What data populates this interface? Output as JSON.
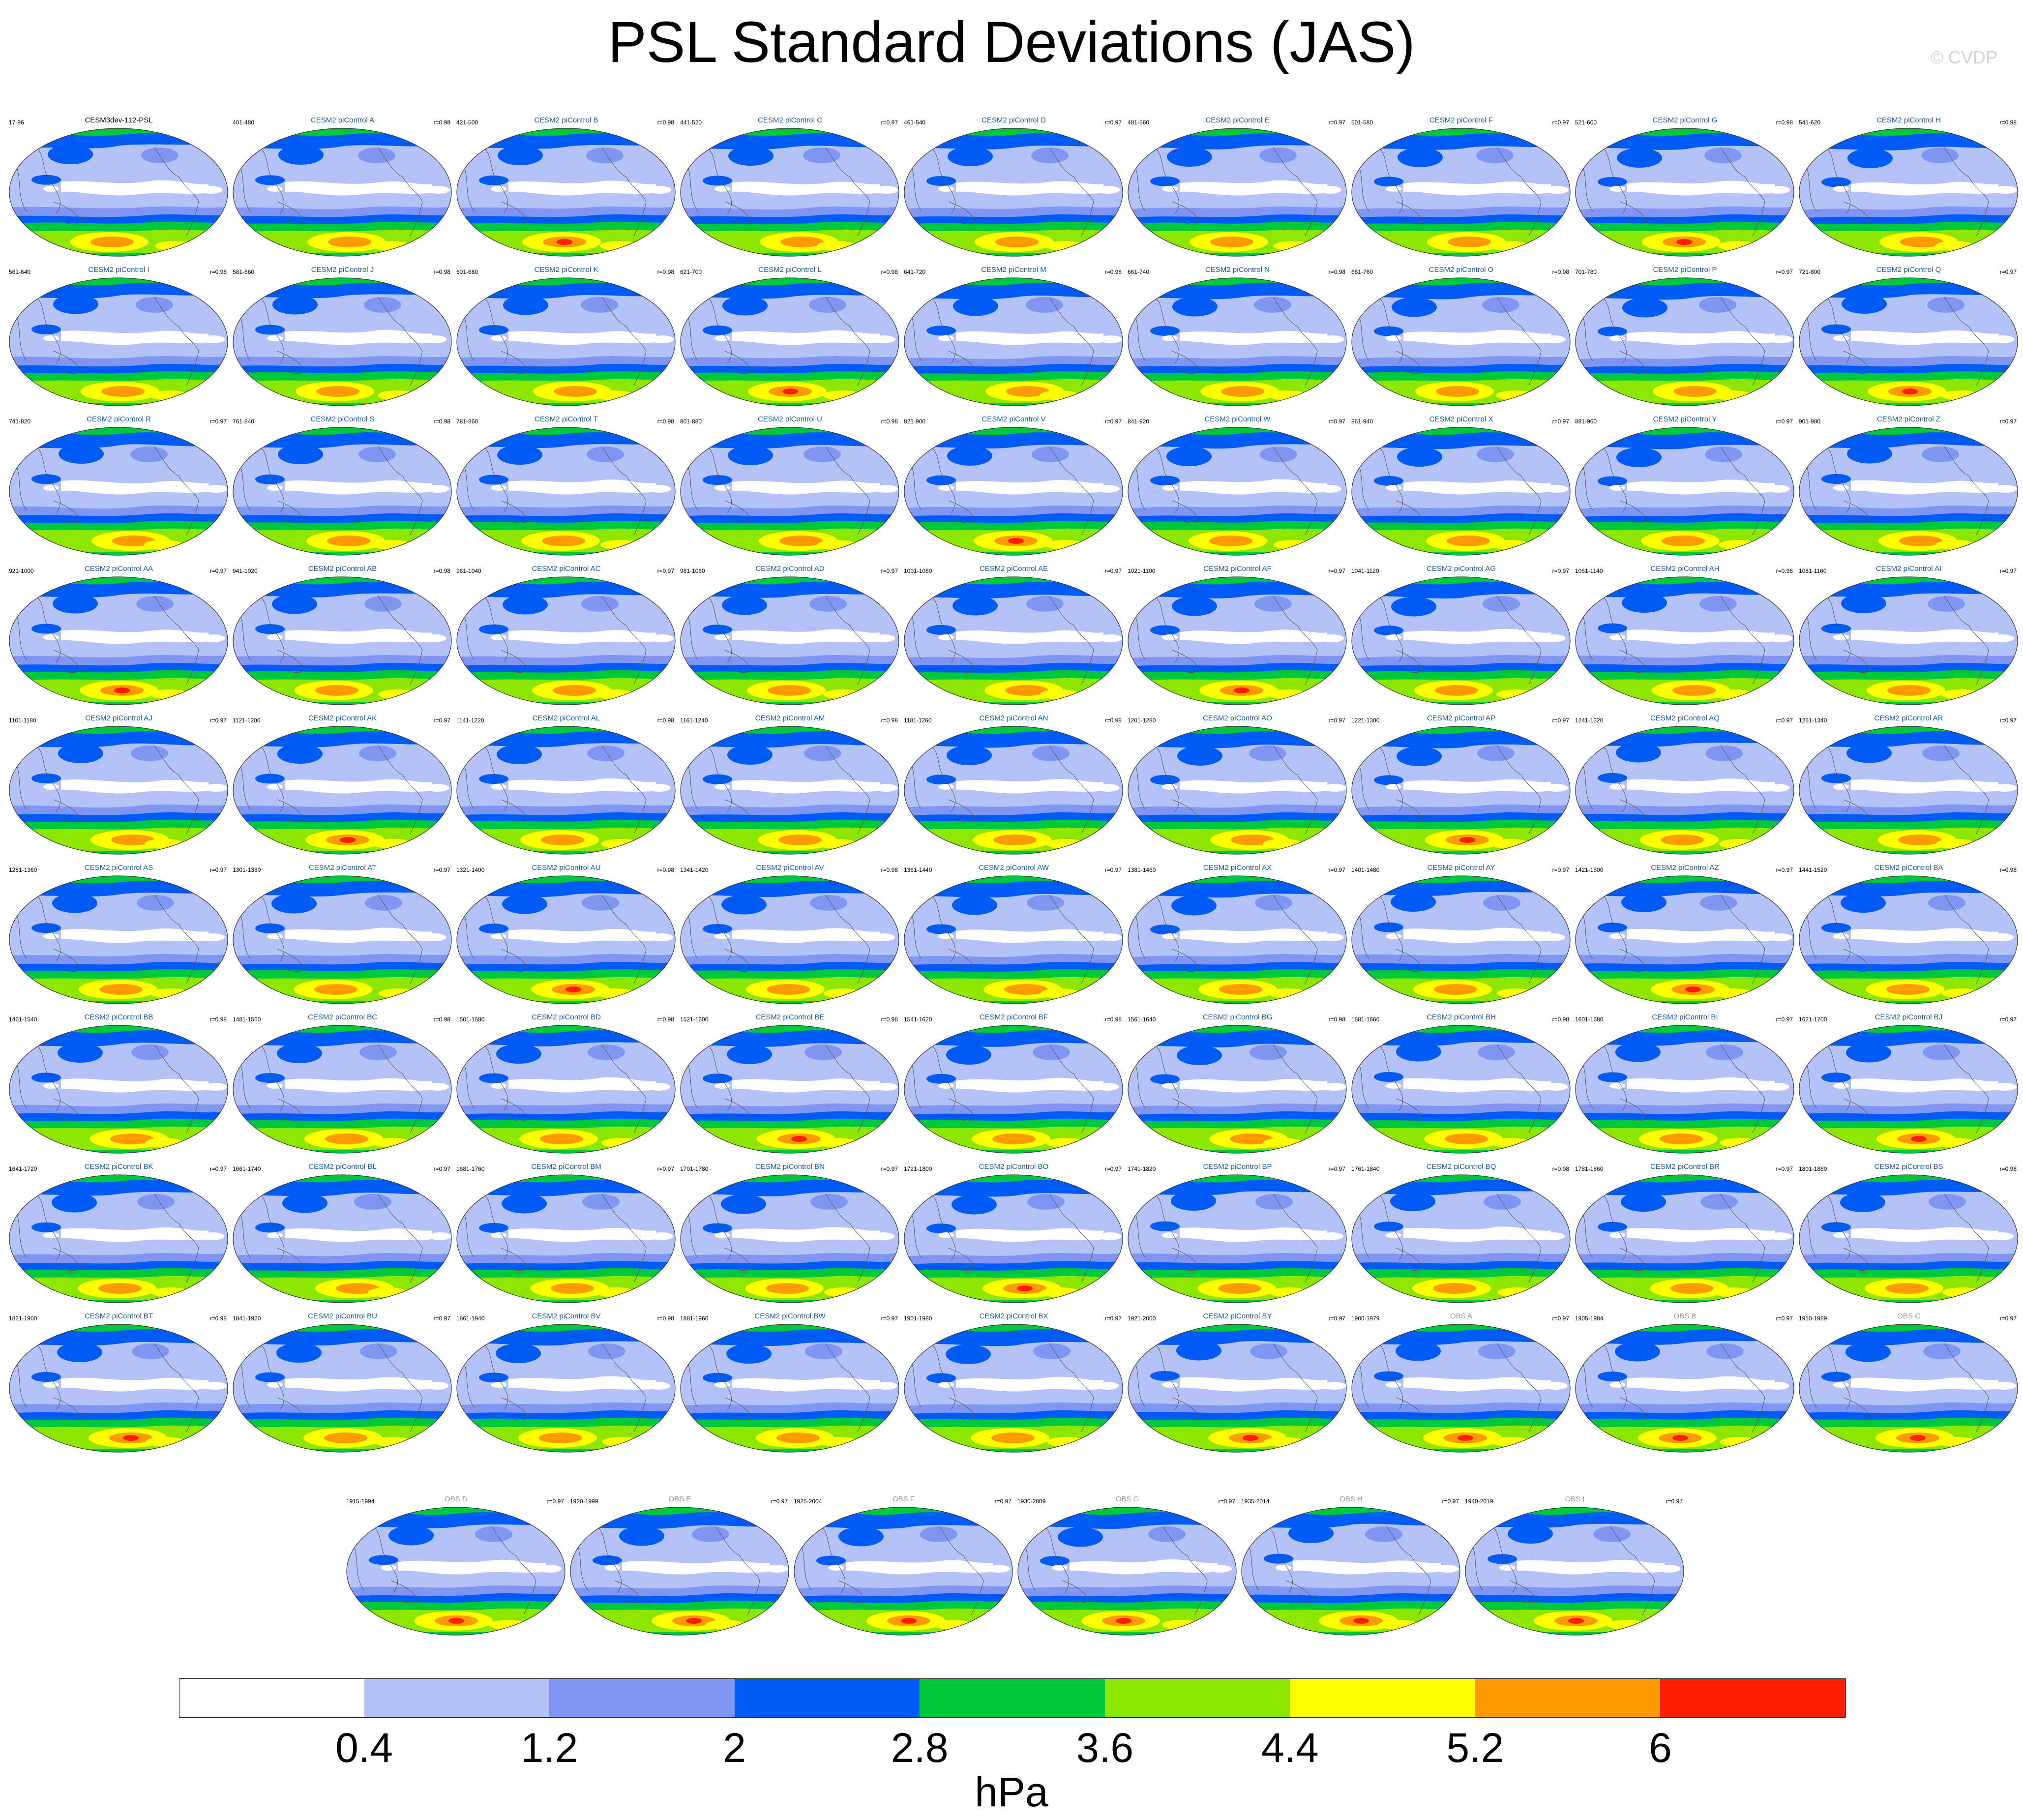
{
  "title": "PSL Standard Deviations (JAS)",
  "watermark": "© CVDP",
  "panels": [
    {
      "name": "CESM3dev-112-PSL",
      "years": "17-96",
      "r": "",
      "type": "ref"
    },
    {
      "name": "CESM2 piControl A",
      "years": "401-480",
      "r": "r=0.98",
      "type": "model"
    },
    {
      "name": "CESM2 piControl B",
      "years": "421-500",
      "r": "r=0.98",
      "type": "model"
    },
    {
      "name": "CESM2 piControl C",
      "years": "441-520",
      "r": "r=0.97",
      "type": "model"
    },
    {
      "name": "CESM2 piControl D",
      "years": "461-540",
      "r": "r=0.97",
      "type": "model"
    },
    {
      "name": "CESM2 piControl E",
      "years": "481-560",
      "r": "r=0.97",
      "type": "model"
    },
    {
      "name": "CESM2 piControl F",
      "years": "501-580",
      "r": "r=0.97",
      "type": "model"
    },
    {
      "name": "CESM2 piControl G",
      "years": "521-600",
      "r": "r=0.98",
      "type": "model"
    },
    {
      "name": "CESM2 piControl H",
      "years": "541-620",
      "r": "r=0.98",
      "type": "model"
    },
    {
      "name": "CESM2 piControl I",
      "years": "561-640",
      "r": "r=0.98",
      "type": "model"
    },
    {
      "name": "CESM2 piControl J",
      "years": "581-660",
      "r": "r=0.98",
      "type": "model"
    },
    {
      "name": "CESM2 piControl K",
      "years": "601-680",
      "r": "r=0.98",
      "type": "model"
    },
    {
      "name": "CESM2 piControl L",
      "years": "621-700",
      "r": "r=0.98",
      "type": "model"
    },
    {
      "name": "CESM2 piControl M",
      "years": "641-720",
      "r": "r=0.98",
      "type": "model"
    },
    {
      "name": "CESM2 piControl N",
      "years": "661-740",
      "r": "r=0.98",
      "type": "model"
    },
    {
      "name": "CESM2 piControl O",
      "years": "681-760",
      "r": "r=0.98",
      "type": "model"
    },
    {
      "name": "CESM2 piControl P",
      "years": "701-780",
      "r": "r=0.97",
      "type": "model"
    },
    {
      "name": "CESM2 piControl Q",
      "years": "721-800",
      "r": "r=0.97",
      "type": "model"
    },
    {
      "name": "CESM2 piControl R",
      "years": "741-820",
      "r": "r=0.97",
      "type": "model"
    },
    {
      "name": "CESM2 piControl S",
      "years": "761-840",
      "r": "r=0.98",
      "type": "model"
    },
    {
      "name": "CESM2 piControl T",
      "years": "781-860",
      "r": "r=0.98",
      "type": "model"
    },
    {
      "name": "CESM2 piControl U",
      "years": "801-880",
      "r": "r=0.98",
      "type": "model"
    },
    {
      "name": "CESM2 piControl V",
      "years": "821-900",
      "r": "r=0.97",
      "type": "model"
    },
    {
      "name": "CESM2 piControl W",
      "years": "841-920",
      "r": "r=0.97",
      "type": "model"
    },
    {
      "name": "CESM2 piControl X",
      "years": "861-940",
      "r": "r=0.97",
      "type": "model"
    },
    {
      "name": "CESM2 piControl Y",
      "years": "881-960",
      "r": "r=0.97",
      "type": "model"
    },
    {
      "name": "CESM2 piControl Z",
      "years": "901-980",
      "r": "r=0.97",
      "type": "model"
    },
    {
      "name": "CESM2 piControl AA",
      "years": "921-1000",
      "r": "r=0.97",
      "type": "model"
    },
    {
      "name": "CESM2 piControl AB",
      "years": "941-1020",
      "r": "r=0.98",
      "type": "model"
    },
    {
      "name": "CESM2 piControl AC",
      "years": "961-1040",
      "r": "r=0.97",
      "type": "model"
    },
    {
      "name": "CESM2 piControl AD",
      "years": "981-1060",
      "r": "r=0.97",
      "type": "model"
    },
    {
      "name": "CESM2 piControl AE",
      "years": "1001-1080",
      "r": "r=0.97",
      "type": "model"
    },
    {
      "name": "CESM2 piControl AF",
      "years": "1021-1100",
      "r": "r=0.97",
      "type": "model"
    },
    {
      "name": "CESM2 piControl AG",
      "years": "1041-1120",
      "r": "r=0.97",
      "type": "model"
    },
    {
      "name": "CESM2 piControl AH",
      "years": "1061-1140",
      "r": "r=0.96",
      "type": "model"
    },
    {
      "name": "CESM2 piControl AI",
      "years": "1081-1160",
      "r": "r=0.97",
      "type": "model"
    },
    {
      "name": "CESM2 piControl AJ",
      "years": "1101-1180",
      "r": "r=0.97",
      "type": "model"
    },
    {
      "name": "CESM2 piControl AK",
      "years": "1121-1200",
      "r": "r=0.97",
      "type": "model"
    },
    {
      "name": "CESM2 piControl AL",
      "years": "1141-1220",
      "r": "r=0.98",
      "type": "model"
    },
    {
      "name": "CESM2 piControl AM",
      "years": "1161-1240",
      "r": "r=0.98",
      "type": "model"
    },
    {
      "name": "CESM2 piControl AN",
      "years": "1181-1260",
      "r": "r=0.98",
      "type": "model"
    },
    {
      "name": "CESM2 piControl AO",
      "years": "1201-1280",
      "r": "r=0.97",
      "type": "model"
    },
    {
      "name": "CESM2 piControl AP",
      "years": "1221-1300",
      "r": "r=0.97",
      "type": "model"
    },
    {
      "name": "CESM2 piControl AQ",
      "years": "1241-1320",
      "r": "r=0.97",
      "type": "model"
    },
    {
      "name": "CESM2 piControl AR",
      "years": "1261-1340",
      "r": "r=0.97",
      "type": "model"
    },
    {
      "name": "CESM2 piControl AS",
      "years": "1281-1360",
      "r": "r=0.97",
      "type": "model"
    },
    {
      "name": "CESM2 piControl AT",
      "years": "1301-1380",
      "r": "r=0.97",
      "type": "model"
    },
    {
      "name": "CESM2 piControl AU",
      "years": "1321-1400",
      "r": "r=0.98",
      "type": "model"
    },
    {
      "name": "CESM2 piControl AV",
      "years": "1341-1420",
      "r": "r=0.98",
      "type": "model"
    },
    {
      "name": "CESM2 piControl AW",
      "years": "1361-1440",
      "r": "r=0.97",
      "type": "model"
    },
    {
      "name": "CESM2 piControl AX",
      "years": "1381-1460",
      "r": "r=0.97",
      "type": "model"
    },
    {
      "name": "CESM2 piControl AY",
      "years": "1401-1480",
      "r": "r=0.97",
      "type": "model"
    },
    {
      "name": "CESM2 piControl AZ",
      "years": "1421-1500",
      "r": "r=0.97",
      "type": "model"
    },
    {
      "name": "CESM2 piControl BA",
      "years": "1441-1520",
      "r": "r=0.98",
      "type": "model"
    },
    {
      "name": "CESM2 piControl BB",
      "years": "1461-1540",
      "r": "r=0.98",
      "type": "model"
    },
    {
      "name": "CESM2 piControl BC",
      "years": "1481-1560",
      "r": "r=0.98",
      "type": "model"
    },
    {
      "name": "CESM2 piControl BD",
      "years": "1501-1580",
      "r": "r=0.98",
      "type": "model"
    },
    {
      "name": "CESM2 piControl BE",
      "years": "1521-1600",
      "r": "r=0.98",
      "type": "model"
    },
    {
      "name": "CESM2 piControl BF",
      "years": "1541-1620",
      "r": "r=0.98",
      "type": "model"
    },
    {
      "name": "CESM2 piControl BG",
      "years": "1561-1640",
      "r": "r=0.98",
      "type": "model"
    },
    {
      "name": "CESM2 piControl BH",
      "years": "1581-1660",
      "r": "r=0.98",
      "type": "model"
    },
    {
      "name": "CESM2 piControl BI",
      "years": "1601-1680",
      "r": "r=0.97",
      "type": "model"
    },
    {
      "name": "CESM2 piControl BJ",
      "years": "1621-1700",
      "r": "r=0.97",
      "type": "model"
    },
    {
      "name": "CESM2 piControl BK",
      "years": "1641-1720",
      "r": "r=0.97",
      "type": "model"
    },
    {
      "name": "CESM2 piControl BL",
      "years": "1661-1740",
      "r": "r=0.97",
      "type": "model"
    },
    {
      "name": "CESM2 piControl BM",
      "years": "1681-1760",
      "r": "r=0.97",
      "type": "model"
    },
    {
      "name": "CESM2 piControl BN",
      "years": "1701-1780",
      "r": "r=0.97",
      "type": "model"
    },
    {
      "name": "CESM2 piControl BO",
      "years": "1721-1800",
      "r": "r=0.97",
      "type": "model"
    },
    {
      "name": "CESM2 piControl BP",
      "years": "1741-1820",
      "r": "r=0.97",
      "type": "model"
    },
    {
      "name": "CESM2 piControl BQ",
      "years": "1761-1840",
      "r": "r=0.98",
      "type": "model"
    },
    {
      "name": "CESM2 piControl BR",
      "years": "1781-1860",
      "r": "r=0.97",
      "type": "model"
    },
    {
      "name": "CESM2 piControl BS",
      "years": "1801-1880",
      "r": "r=0.98",
      "type": "model"
    },
    {
      "name": "CESM2 piControl BT",
      "years": "1821-1900",
      "r": "r=0.98",
      "type": "model"
    },
    {
      "name": "CESM2 piControl BU",
      "years": "1841-1920",
      "r": "r=0.97",
      "type": "model"
    },
    {
      "name": "CESM2 piControl BV",
      "years": "1861-1940",
      "r": "r=0.98",
      "type": "model"
    },
    {
      "name": "CESM2 piControl BW",
      "years": "1881-1960",
      "r": "r=0.97",
      "type": "model"
    },
    {
      "name": "CESM2 piControl BX",
      "years": "1901-1980",
      "r": "r=0.97",
      "type": "model"
    },
    {
      "name": "CESM2 piControl BY",
      "years": "1921-2000",
      "r": "r=0.97",
      "type": "model"
    },
    {
      "name": "OBS A",
      "years": "1900-1979",
      "r": "r=0.97",
      "type": "obs"
    },
    {
      "name": "OBS B",
      "years": "1905-1984",
      "r": "r=0.97",
      "type": "obs"
    },
    {
      "name": "OBS C",
      "years": "1910-1989",
      "r": "r=0.97",
      "type": "obs"
    },
    {
      "name": "OBS D",
      "years": "1915-1994",
      "r": "r=0.97",
      "type": "obs"
    },
    {
      "name": "OBS E",
      "years": "1920-1999",
      "r": "r=0.97",
      "type": "obs"
    },
    {
      "name": "OBS F",
      "years": "1925-2004",
      "r": "r=0.97",
      "type": "obs"
    },
    {
      "name": "OBS G",
      "years": "1930-2009",
      "r": "r=0.97",
      "type": "obs"
    },
    {
      "name": "OBS H",
      "years": "1935-2014",
      "r": "r=0.97",
      "type": "obs"
    },
    {
      "name": "OBS I",
      "years": "1940-2019",
      "r": "r=0.97",
      "type": "obs"
    }
  ],
  "label_colors": {
    "ref": "#000000",
    "model": "#1a5aa0",
    "obs": "#9a9a9a"
  },
  "colorbar": {
    "colors": [
      "#ffffff",
      "#b4c3f7",
      "#8096f2",
      "#005af5",
      "#00c83c",
      "#8ce600",
      "#ffff00",
      "#ff9b00",
      "#ff1e00"
    ],
    "labels": [
      "0.4",
      "1.2",
      "2",
      "2.8",
      "3.6",
      "4.4",
      "5.2",
      "6"
    ],
    "units": "hPa"
  },
  "map_colors": {
    "ocean_base": "#b4c3f7",
    "mid_blue": "#8096f2",
    "strong_blue": "#005af5",
    "green": "#00c83c",
    "lime": "#8ce600",
    "yellow": "#ffff00",
    "orange": "#ff9b00",
    "red": "#ff1e00",
    "low": "#ffffff",
    "coast": "#555555"
  }
}
